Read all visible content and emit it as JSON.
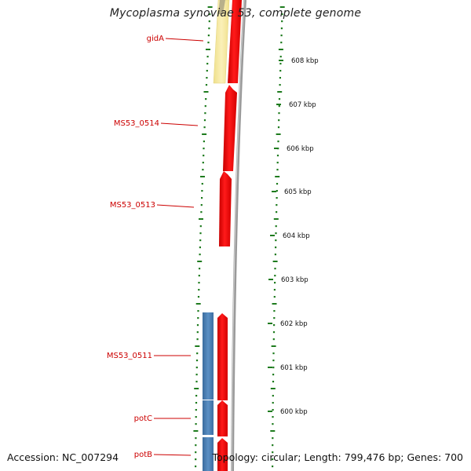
{
  "title": "Mycoplasma synoviae 53, complete genome",
  "footer": {
    "accession": "Accession: NC_007294",
    "summary": "Topology: circular; Length: 799,476 bp; Genes: 700"
  },
  "colors": {
    "forward_gene": "#ff0000",
    "reverse_gene": "#4a7fb5",
    "rna_gene": "#f5e6a0",
    "gene_label": "#cc0000",
    "gc_ticks": "#1e7b1e",
    "backbone": "#8a8a8a"
  },
  "scale": {
    "unit": "kbp",
    "ticks": [
      "608 kbp",
      "607 kbp",
      "606 kbp",
      "605 kbp",
      "604 kbp",
      "603 kbp",
      "602 kbp",
      "601 kbp",
      "600 kbp"
    ]
  },
  "gene_labels": [
    "gidA",
    "MS53_0514",
    "MS53_0513",
    "MS53_0511",
    "potC",
    "potB"
  ]
}
